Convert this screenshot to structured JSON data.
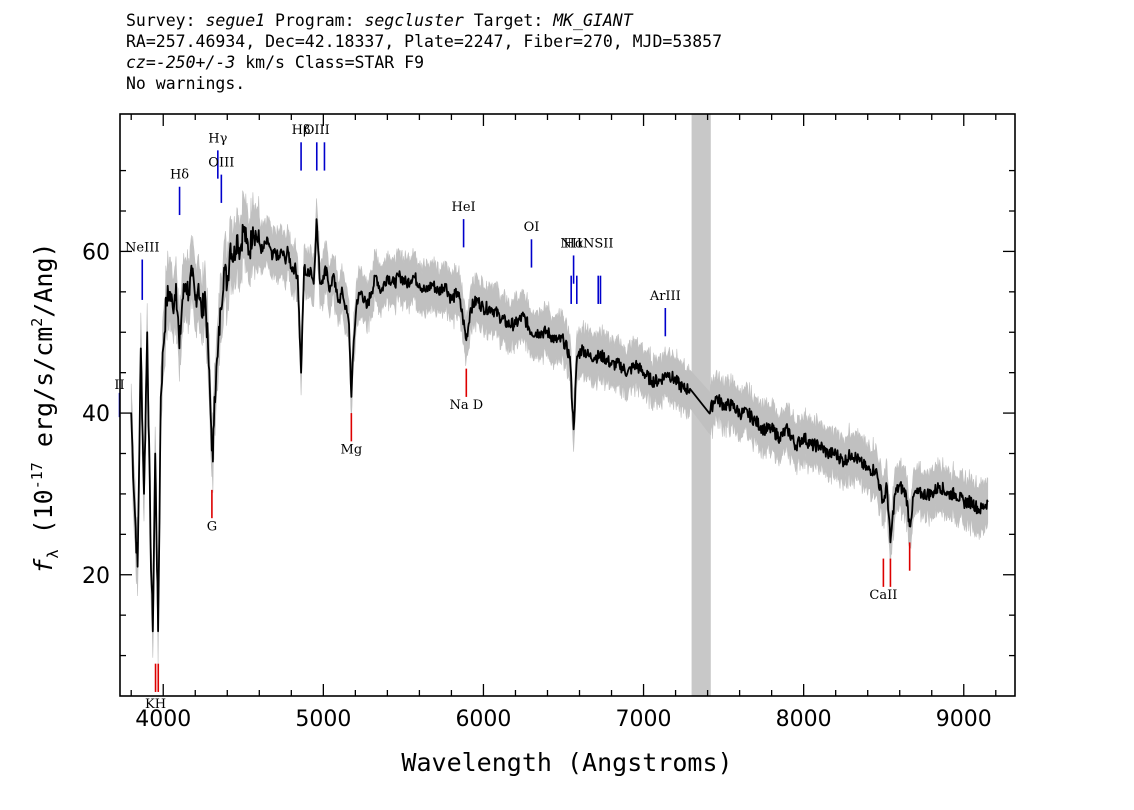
{
  "header": {
    "line1": {
      "survey_label": "Survey: ",
      "survey": "segue1",
      "program_label": " Program: ",
      "program": "segcluster",
      "target_label": " Target: ",
      "target": "MK_GIANT"
    },
    "line2": "RA=257.46934, Dec=42.18337, Plate=2247, Fiber=270, MJD=53857",
    "line3": {
      "cz_label": "cz=",
      "cz": "-250+/-3",
      "rest": " km/s Class=STAR F9"
    },
    "line4": "No warnings."
  },
  "chart_data": {
    "type": "line",
    "xlabel": "Wavelength (Angstroms)",
    "ylabel": "f_λ (10^-17 erg/s/cm^2/Ang)",
    "xlim": [
      3730,
      9320
    ],
    "ylim": [
      5,
      77
    ],
    "x_ticks": [
      4000,
      5000,
      6000,
      7000,
      8000,
      9000
    ],
    "y_ticks": [
      20,
      40,
      60
    ],
    "masked_band": [
      7300,
      7420
    ],
    "spectrum": [
      [
        3800,
        40
      ],
      [
        3820,
        29
      ],
      [
        3840,
        21
      ],
      [
        3860,
        48
      ],
      [
        3880,
        30
      ],
      [
        3900,
        50
      ],
      [
        3920,
        25
      ],
      [
        3935,
        13
      ],
      [
        3950,
        35
      ],
      [
        3968,
        13
      ],
      [
        3985,
        42
      ],
      [
        4000,
        48
      ],
      [
        4020,
        54
      ],
      [
        4040,
        55
      ],
      [
        4060,
        53
      ],
      [
        4080,
        56
      ],
      [
        4101,
        48
      ],
      [
        4120,
        54
      ],
      [
        4140,
        56
      ],
      [
        4160,
        55
      ],
      [
        4180,
        57
      ],
      [
        4200,
        54
      ],
      [
        4220,
        56
      ],
      [
        4240,
        52
      ],
      [
        4260,
        55
      ],
      [
        4280,
        48
      ],
      [
        4300,
        38
      ],
      [
        4310,
        34
      ],
      [
        4320,
        42
      ],
      [
        4340,
        47
      ],
      [
        4360,
        53
      ],
      [
        4380,
        58
      ],
      [
        4400,
        56
      ],
      [
        4420,
        61
      ],
      [
        4440,
        59
      ],
      [
        4460,
        62
      ],
      [
        4480,
        60
      ],
      [
        4500,
        63
      ],
      [
        4520,
        61
      ],
      [
        4540,
        60
      ],
      [
        4560,
        63
      ],
      [
        4580,
        62
      ],
      [
        4600,
        61
      ],
      [
        4620,
        60
      ],
      [
        4640,
        61
      ],
      [
        4660,
        61
      ],
      [
        4680,
        59
      ],
      [
        4700,
        60
      ],
      [
        4720,
        59
      ],
      [
        4740,
        60
      ],
      [
        4760,
        59
      ],
      [
        4780,
        60
      ],
      [
        4800,
        58
      ],
      [
        4820,
        58
      ],
      [
        4840,
        57
      ],
      [
        4861,
        45
      ],
      [
        4880,
        58
      ],
      [
        4900,
        57
      ],
      [
        4920,
        58
      ],
      [
        4940,
        56
      ],
      [
        4957,
        64
      ],
      [
        4980,
        56
      ],
      [
        5000,
        57
      ],
      [
        5020,
        58
      ],
      [
        5040,
        55
      ],
      [
        5060,
        57
      ],
      [
        5080,
        55
      ],
      [
        5100,
        54
      ],
      [
        5120,
        55
      ],
      [
        5140,
        53
      ],
      [
        5160,
        51
      ],
      [
        5175,
        42
      ],
      [
        5190,
        49
      ],
      [
        5210,
        54
      ],
      [
        5240,
        55
      ],
      [
        5270,
        53
      ],
      [
        5300,
        55
      ],
      [
        5330,
        57
      ],
      [
        5360,
        55
      ],
      [
        5400,
        57
      ],
      [
        5440,
        56
      ],
      [
        5480,
        57
      ],
      [
        5520,
        56
      ],
      [
        5560,
        57
      ],
      [
        5600,
        56
      ],
      [
        5640,
        55
      ],
      [
        5680,
        56
      ],
      [
        5720,
        55
      ],
      [
        5760,
        56
      ],
      [
        5800,
        54
      ],
      [
        5840,
        55
      ],
      [
        5870,
        52
      ],
      [
        5893,
        49
      ],
      [
        5920,
        53
      ],
      [
        5960,
        54
      ],
      [
        6000,
        53
      ],
      [
        6050,
        53
      ],
      [
        6100,
        52
      ],
      [
        6150,
        51
      ],
      [
        6200,
        51
      ],
      [
        6250,
        52
      ],
      [
        6300,
        50
      ],
      [
        6350,
        50
      ],
      [
        6400,
        50
      ],
      [
        6450,
        49
      ],
      [
        6500,
        49
      ],
      [
        6540,
        47
      ],
      [
        6563,
        38
      ],
      [
        6585,
        47
      ],
      [
        6620,
        48
      ],
      [
        6660,
        47
      ],
      [
        6700,
        47
      ],
      [
        6750,
        47
      ],
      [
        6800,
        46
      ],
      [
        6850,
        46
      ],
      [
        6900,
        45
      ],
      [
        6950,
        46
      ],
      [
        7000,
        45
      ],
      [
        7050,
        44
      ],
      [
        7100,
        44
      ],
      [
        7150,
        45
      ],
      [
        7200,
        44
      ],
      [
        7250,
        43
      ],
      [
        7290,
        43
      ],
      [
        7410,
        40
      ],
      [
        7450,
        42
      ],
      [
        7500,
        41
      ],
      [
        7550,
        41
      ],
      [
        7600,
        40
      ],
      [
        7650,
        40
      ],
      [
        7700,
        39
      ],
      [
        7750,
        38
      ],
      [
        7800,
        38
      ],
      [
        7850,
        37
      ],
      [
        7900,
        38
      ],
      [
        7950,
        36
      ],
      [
        8000,
        37
      ],
      [
        8050,
        36
      ],
      [
        8100,
        36
      ],
      [
        8150,
        35
      ],
      [
        8200,
        35
      ],
      [
        8250,
        34
      ],
      [
        8300,
        35
      ],
      [
        8350,
        34
      ],
      [
        8400,
        33
      ],
      [
        8450,
        33
      ],
      [
        8498,
        29
      ],
      [
        8520,
        31
      ],
      [
        8542,
        24
      ],
      [
        8570,
        30
      ],
      [
        8600,
        31
      ],
      [
        8640,
        30
      ],
      [
        8662,
        26
      ],
      [
        8690,
        30
      ],
      [
        8740,
        30
      ],
      [
        8800,
        30
      ],
      [
        8850,
        31
      ],
      [
        8900,
        30
      ],
      [
        8950,
        30
      ],
      [
        9000,
        29
      ],
      [
        9050,
        29
      ],
      [
        9100,
        28
      ],
      [
        9150,
        29
      ]
    ],
    "emission_lines": [
      {
        "label": "NeIII",
        "x": 3869,
        "y_top": 59,
        "y_bot": 54,
        "label_y": 60
      },
      {
        "label": "Hδ",
        "x": 4102,
        "y_top": 68,
        "y_bot": 64.5,
        "label_y": 69
      },
      {
        "label": "Hγ",
        "x": 4341,
        "y_top": 72.5,
        "y_bot": 69,
        "label_y": 73.5
      },
      {
        "label": "OIII",
        "x": 4363,
        "y_top": 69.5,
        "y_bot": 66,
        "label_y": 70.5
      },
      {
        "label": "Hβ",
        "x": 4861,
        "y_top": 73.5,
        "y_bot": 70,
        "label_y": 74.5
      },
      {
        "label": "OIII",
        "x": 4959,
        "y_top": 73.5,
        "y_bot": 70,
        "label_y": 74.5
      },
      {
        "label": "",
        "x": 5007,
        "y_top": 73.5,
        "y_bot": 70
      },
      {
        "label": "HeI",
        "x": 5876,
        "y_top": 64,
        "y_bot": 60.5,
        "label_y": 65
      },
      {
        "label": "OI",
        "x": 6300,
        "y_top": 61.5,
        "y_bot": 58,
        "label_y": 62.5
      },
      {
        "label": "Hα",
        "x": 6563,
        "y_top": 59.5,
        "y_bot": 56,
        "label_y": 60.5
      },
      {
        "label": "NII",
        "x": 6548,
        "y_top": 57,
        "y_bot": 53.5,
        "label_y": 60.5
      },
      {
        "label": "",
        "x": 6583,
        "y_top": 57,
        "y_bot": 53.5
      },
      {
        "label": "NSII",
        "x": 6717,
        "y_top": 57,
        "y_bot": 53.5,
        "label_y": 60.5
      },
      {
        "label": "",
        "x": 6731,
        "y_top": 57,
        "y_bot": 53.5
      },
      {
        "label": "ArIII",
        "x": 7136,
        "y_top": 53,
        "y_bot": 49.5,
        "label_y": 54
      },
      {
        "label": "II",
        "x": 3727,
        "y_top": 42.5,
        "y_bot": 39.5,
        "label_y": 43
      }
    ],
    "absorption_lines": [
      {
        "label": "KH",
        "x": 3952,
        "y_top": 9,
        "y_bot": 5.5,
        "label_y": 3.5
      },
      {
        "label": "",
        "x": 3969,
        "y_top": 9,
        "y_bot": 5.5
      },
      {
        "label": "G",
        "x": 4304,
        "y_top": 30.5,
        "y_bot": 27,
        "label_y": 25.5
      },
      {
        "label": "Mg",
        "x": 5175,
        "y_top": 40,
        "y_bot": 36.5,
        "label_y": 35
      },
      {
        "label": "Na D",
        "x": 5893,
        "y_top": 45.5,
        "y_bot": 42,
        "label_y": 40.5
      },
      {
        "label": "CaII",
        "x": 8498,
        "y_top": 22,
        "y_bot": 18.5,
        "label_y": 17
      },
      {
        "label": "",
        "x": 8542,
        "y_top": 22,
        "y_bot": 18.5
      },
      {
        "label": "",
        "x": 8662,
        "y_top": 24,
        "y_bot": 20.5
      }
    ],
    "colors": {
      "spectrum": "#000000",
      "noise": "#c0c0c0",
      "emission": "#0000cc",
      "absorption": "#dd0000",
      "mask": "#c8c8c8"
    }
  }
}
